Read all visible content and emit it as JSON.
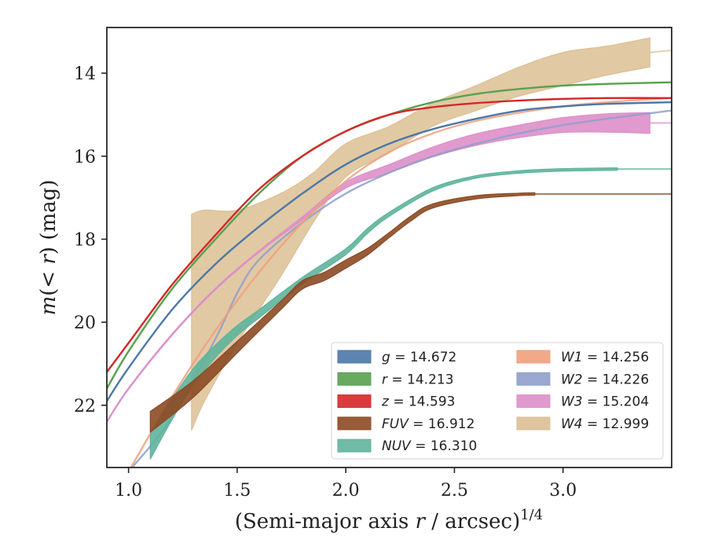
{
  "chart_data": {
    "type": "line",
    "xlabel": "(Semi-major axis r / arcsec)^1/4",
    "xlabel_parts": {
      "pre": "(Semi-major axis ",
      "var": "r",
      "post": " / arcsec)",
      "sup": "1/4"
    },
    "ylabel": "m(< r) (mag)",
    "ylabel_parts": {
      "var": "m",
      "mid": "(< ",
      "var2": "r",
      "post": ") (mag)"
    },
    "xlim": [
      0.9,
      3.5
    ],
    "ylim": [
      23.5,
      12.9
    ],
    "y_inverted": true,
    "xticks": [
      1.0,
      1.5,
      2.0,
      2.5,
      3.0
    ],
    "xtick_labels": [
      "1.0",
      "1.5",
      "2.0",
      "2.5",
      "3.0"
    ],
    "yticks": [
      14,
      16,
      18,
      20,
      22
    ],
    "ytick_labels": [
      "14",
      "16",
      "18",
      "20",
      "22"
    ],
    "grid": false,
    "legend_position": "lower-right",
    "legend_columns": 2,
    "series": [
      {
        "name": "g",
        "label_value": "14.672",
        "color": "#4c78a8",
        "style": "line",
        "x": [
          0.9,
          1.0,
          1.2,
          1.4,
          1.6,
          1.8,
          2.0,
          2.2,
          2.4,
          2.6,
          2.8,
          3.0,
          3.2,
          3.5
        ],
        "y": [
          21.9,
          21.1,
          19.7,
          18.6,
          17.7,
          16.9,
          16.2,
          15.7,
          15.35,
          15.1,
          14.9,
          14.8,
          14.74,
          14.7
        ]
      },
      {
        "name": "r",
        "label_value": "14.213",
        "color": "#59a14f",
        "style": "line",
        "x": [
          0.9,
          1.0,
          1.2,
          1.4,
          1.6,
          1.8,
          2.0,
          2.2,
          2.4,
          2.6,
          2.8,
          3.0,
          3.2,
          3.5
        ],
        "y": [
          21.6,
          20.7,
          19.2,
          18.0,
          16.9,
          16.0,
          15.4,
          15.0,
          14.7,
          14.5,
          14.38,
          14.3,
          14.26,
          14.22
        ]
      },
      {
        "name": "z",
        "label_value": "14.593",
        "color": "#d62728",
        "style": "line",
        "x": [
          0.9,
          1.0,
          1.2,
          1.4,
          1.6,
          1.8,
          2.0,
          2.2,
          2.4,
          2.6,
          2.8,
          3.0,
          3.2,
          3.5
        ],
        "y": [
          21.2,
          20.5,
          19.1,
          17.9,
          16.8,
          16.0,
          15.4,
          15.0,
          14.82,
          14.72,
          14.66,
          14.62,
          14.6,
          14.6
        ]
      },
      {
        "name": "FUV",
        "label_value": "16.912",
        "color": "#8c4a24",
        "style": "band",
        "x": [
          1.1,
          1.3,
          1.5,
          1.7,
          1.8,
          1.9,
          2.0,
          2.1,
          2.2,
          2.3,
          2.4,
          2.6,
          2.8,
          2.87
        ],
        "y": [
          22.4,
          21.6,
          20.6,
          19.6,
          19.1,
          18.9,
          18.6,
          18.3,
          17.9,
          17.5,
          17.2,
          16.99,
          16.92,
          16.91
        ],
        "half_width": [
          0.25,
          0.2,
          0.14,
          0.1,
          0.1,
          0.1,
          0.1,
          0.08,
          0.06,
          0.06,
          0.05,
          0.04,
          0.03,
          0.03
        ],
        "tail_x": [
          2.87,
          3.5
        ],
        "tail_y": [
          16.91,
          16.91
        ]
      },
      {
        "name": "NUV",
        "label_value": "16.310",
        "color": "#5fb49c",
        "style": "band",
        "x": [
          1.1,
          1.2,
          1.3,
          1.4,
          1.5,
          1.6,
          1.8,
          2.0,
          2.1,
          2.2,
          2.4,
          2.6,
          2.8,
          3.0,
          3.25
        ],
        "y": [
          23.0,
          22.1,
          21.3,
          20.7,
          20.2,
          19.8,
          19.0,
          18.3,
          17.8,
          17.4,
          16.8,
          16.5,
          16.38,
          16.33,
          16.31
        ],
        "half_width": [
          0.3,
          0.25,
          0.2,
          0.15,
          0.12,
          0.1,
          0.08,
          0.07,
          0.06,
          0.05,
          0.04,
          0.03,
          0.03,
          0.03,
          0.03
        ],
        "tail_x": [
          3.25,
          3.5
        ],
        "tail_y": [
          16.31,
          16.31
        ]
      },
      {
        "name": "W1",
        "label_value": "14.256",
        "color": "#f0a07c",
        "style": "line",
        "x": [
          1.0,
          1.2,
          1.4,
          1.6,
          1.8,
          2.0,
          2.2,
          2.4,
          2.6,
          2.8,
          3.0,
          3.2,
          3.5
        ],
        "y": [
          23.6,
          21.8,
          20.2,
          18.8,
          17.6,
          16.6,
          15.9,
          15.45,
          15.15,
          14.95,
          14.8,
          14.7,
          14.6
        ]
      },
      {
        "name": "W2",
        "label_value": "14.226",
        "color": "#8f9fcb",
        "style": "line",
        "x": [
          1.0,
          1.2,
          1.4,
          1.5,
          1.6,
          1.8,
          2.0,
          2.2,
          2.4,
          2.6,
          2.8,
          3.0,
          3.2,
          3.5
        ],
        "y": [
          23.6,
          22.3,
          20.4,
          19.3,
          18.5,
          17.6,
          16.9,
          16.4,
          16.0,
          15.7,
          15.45,
          15.25,
          15.1,
          14.9
        ]
      },
      {
        "name": "W3",
        "label_value": "15.204",
        "color": "#dd8fc9",
        "style": "band",
        "x": [
          0.9,
          1.0,
          1.2,
          1.4,
          1.6,
          1.8,
          2.0,
          2.2,
          2.4,
          2.6,
          2.8,
          3.0,
          3.2,
          3.4
        ],
        "y": [
          22.4,
          21.6,
          20.3,
          19.2,
          18.3,
          17.5,
          16.7,
          16.3,
          15.9,
          15.6,
          15.4,
          15.25,
          15.2,
          15.2
        ],
        "half_width": [
          0.02,
          0.02,
          0.02,
          0.02,
          0.02,
          0.04,
          0.07,
          0.1,
          0.12,
          0.14,
          0.15,
          0.18,
          0.22,
          0.25
        ],
        "tail_x": [
          3.4,
          3.5
        ],
        "tail_y": [
          15.2,
          15.2
        ]
      },
      {
        "name": "W4",
        "label_value": "12.999",
        "color": "#dcbf94",
        "style": "band",
        "x": [
          1.29,
          1.35,
          1.5,
          1.7,
          1.85,
          2.0,
          2.2,
          2.4,
          2.6,
          2.8,
          3.0,
          3.2,
          3.4
        ],
        "y": [
          20.0,
          19.6,
          18.9,
          17.9,
          17.0,
          16.1,
          15.6,
          15.0,
          14.6,
          14.2,
          13.9,
          13.7,
          13.5
        ],
        "half_width": [
          2.6,
          2.3,
          1.6,
          1.0,
          0.6,
          0.4,
          0.32,
          0.28,
          0.3,
          0.35,
          0.4,
          0.35,
          0.35
        ],
        "tail_x": [
          3.4,
          3.5
        ],
        "tail_y": [
          13.5,
          13.45
        ]
      }
    ]
  }
}
